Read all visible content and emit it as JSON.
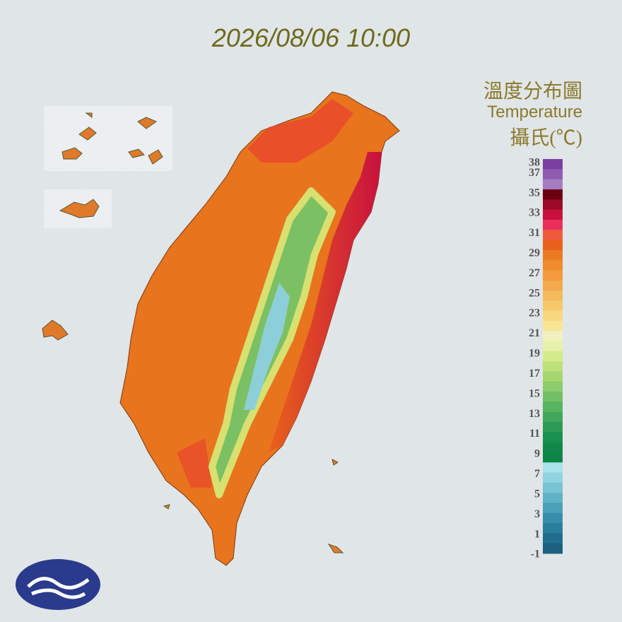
{
  "header": {
    "timestamp": "2026/08/06 10:00"
  },
  "legend": {
    "title": "溫度分布圖",
    "subtitle": "Temperature",
    "unit": "攝氏(℃)",
    "ticks": [
      38,
      37,
      35,
      33,
      31,
      29,
      27,
      25,
      23,
      21,
      19,
      17,
      15,
      13,
      11,
      9,
      7,
      5,
      3,
      1,
      -1
    ],
    "colors": [
      "#7a3fa0",
      "#8e5bb0",
      "#a77cc0",
      "#6b0010",
      "#9b0828",
      "#c8103e",
      "#e8305a",
      "#ef5a3c",
      "#e8621c",
      "#ec7a22",
      "#ef8c2e",
      "#f29a3c",
      "#f3aa4c",
      "#f4ba5c",
      "#f6c86c",
      "#f8d87e",
      "#f9e694",
      "#f3f0c0",
      "#e6f0a8",
      "#d4ec8c",
      "#bde07a",
      "#a6d670",
      "#8ccc6a",
      "#72c066",
      "#58b460",
      "#40a85a",
      "#2c9c54",
      "#1a9050",
      "#10884a",
      "#0e8446",
      "#a8e2ea",
      "#90d4e0",
      "#78c4d4",
      "#60b2c6",
      "#4aa0b8",
      "#388ea8",
      "#2a7e9a",
      "#206e8c",
      "#1a6280"
    ]
  }
}
